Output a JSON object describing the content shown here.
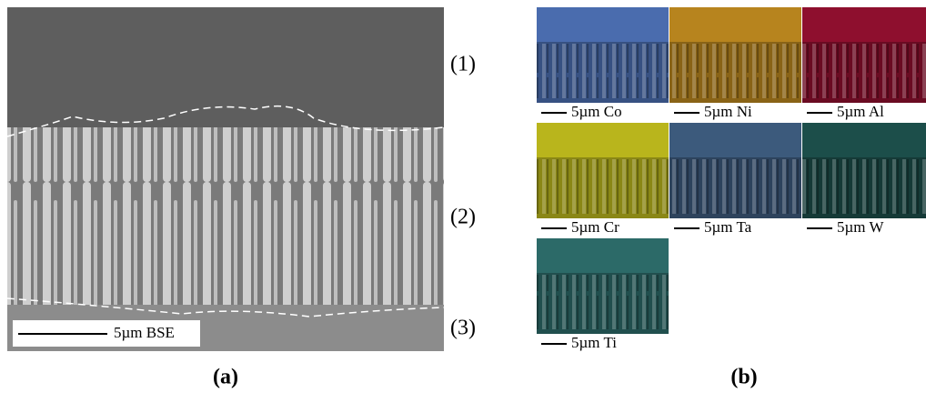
{
  "panel_a": {
    "label": "(a)",
    "scale_bar": "5µm BSE",
    "regions": [
      "(1)",
      "(2)",
      "(3)"
    ]
  },
  "panel_b": {
    "label": "(b)",
    "maps": [
      {
        "scale_bar": "5µm Co",
        "color": "#4a6cae"
      },
      {
        "scale_bar": "5µm Ni",
        "color": "#b7841e"
      },
      {
        "scale_bar": "5µm Al",
        "color": "#8e0f2e"
      },
      {
        "scale_bar": "5µm Cr",
        "color": "#b9b51c"
      },
      {
        "scale_bar": "5µm Ta",
        "color": "#3c5a7c"
      },
      {
        "scale_bar": "5µm W",
        "color": "#1c4e4a"
      },
      {
        "scale_bar": "5µm Ti",
        "color": "#2c6a68"
      }
    ]
  }
}
